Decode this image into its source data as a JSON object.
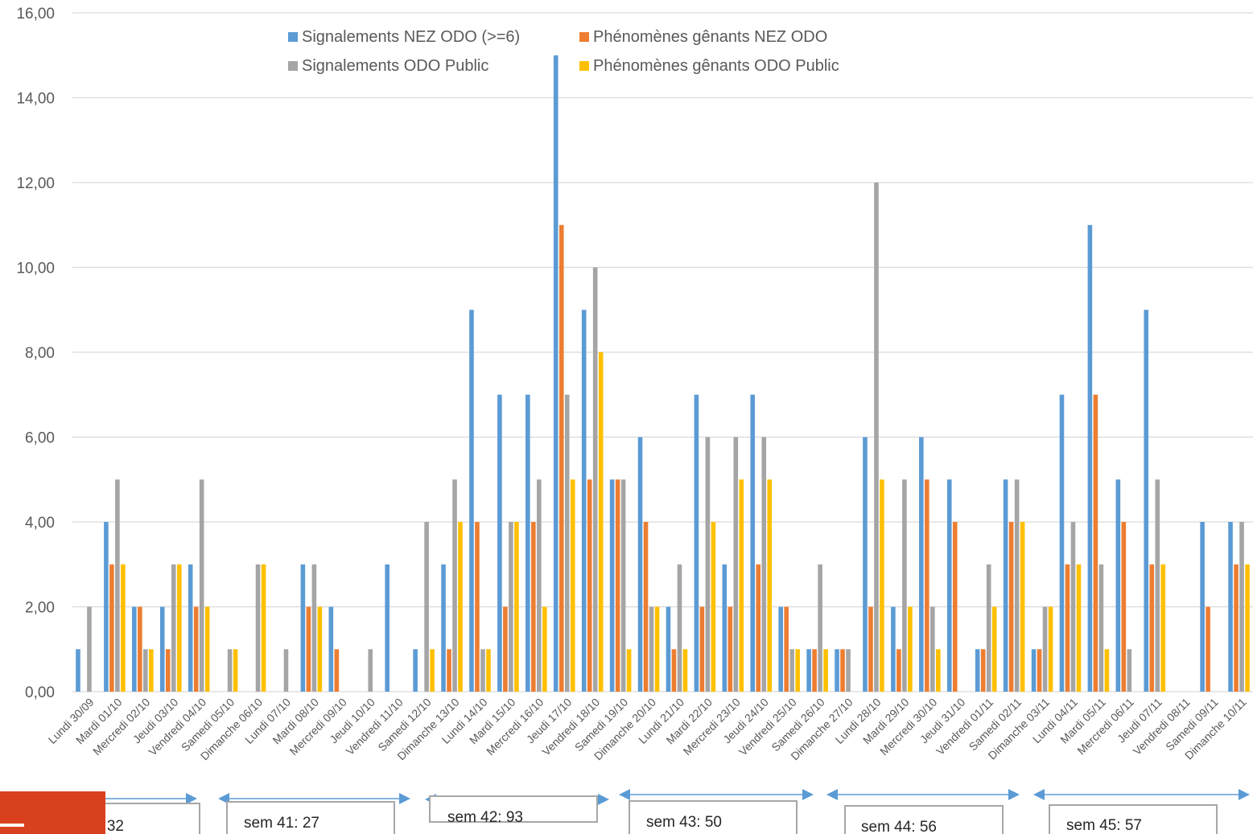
{
  "chart_data": {
    "type": "bar",
    "ylim": [
      0,
      16
    ],
    "yticks": [
      "0,00",
      "2,00",
      "4,00",
      "6,00",
      "8,00",
      "10,00",
      "12,00",
      "14,00",
      "16,00"
    ],
    "grid": true,
    "legend_position": "top-center",
    "categories": [
      "Lundi 30/09",
      "Mardi 01/10",
      "Mercredi 02/10",
      "Jeudi 03/10",
      "Vendredi 04/10",
      "Samedi 05/10",
      "Dimanche 06/10",
      "Lundi 07/10",
      "Mardi 08/10",
      "Mercredi 09/10",
      "Jeudi 10/10",
      "Vendredi 11/10",
      "Samedi 12/10",
      "Dimanche 13/10",
      "Lundi 14/10",
      "Mardi 15/10",
      "Mercredi 16/10",
      "Jeudi 17/10",
      "Vendredi 18/10",
      "Samedi 19/10",
      "Dimanche 20/10",
      "Lundi 21/10",
      "Mardi 22/10",
      "Mercredi 23/10",
      "Jeudi 24/10",
      "Vendredi 25/10",
      "Samedi 26/10",
      "Dimanche 27/10",
      "Lundi 28/10",
      "Mardi 29/10",
      "Mercredi 30/10",
      "Jeudi 31/10",
      "Vendredi 01/11",
      "Samedi 02/11",
      "Dimanche 03/11",
      "Lundi 04/11",
      "Mardi 05/11",
      "Mercredi 06/11",
      "Jeudi 07/11",
      "Vendredi 08/11",
      "Samedi 09/11",
      "Dimanche 10/11"
    ],
    "series": [
      {
        "name": "Signalements NEZ ODO (>=6)",
        "color": "#5B9BD5",
        "values": [
          1,
          4,
          2,
          2,
          3,
          0,
          0,
          0,
          3,
          2,
          0,
          3,
          1,
          3,
          9,
          7,
          7,
          15,
          9,
          5,
          6,
          2,
          7,
          3,
          7,
          2,
          1,
          1,
          6,
          2,
          6,
          5,
          1,
          5,
          1,
          7,
          11,
          5,
          9,
          0,
          4,
          4
        ]
      },
      {
        "name": "Phénomènes gênants NEZ ODO",
        "color": "#ED7D31",
        "values": [
          0,
          3,
          2,
          1,
          2,
          0,
          0,
          0,
          2,
          1,
          0,
          0,
          0,
          1,
          4,
          2,
          4,
          11,
          5,
          5,
          4,
          1,
          2,
          2,
          3,
          2,
          1,
          1,
          2,
          1,
          5,
          4,
          1,
          4,
          1,
          3,
          7,
          4,
          3,
          0,
          2,
          3
        ]
      },
      {
        "name": "Signalements ODO Public",
        "color": "#A5A5A5",
        "values": [
          2,
          5,
          1,
          3,
          5,
          1,
          3,
          1,
          3,
          0,
          1,
          0,
          4,
          5,
          1,
          4,
          5,
          7,
          10,
          5,
          2,
          3,
          6,
          6,
          6,
          1,
          3,
          1,
          12,
          5,
          2,
          0,
          3,
          5,
          2,
          4,
          3,
          1,
          5,
          0,
          0,
          4
        ]
      },
      {
        "name": "Phénomènes gênants ODO Public",
        "color": "#FFC000",
        "values": [
          0,
          3,
          1,
          3,
          2,
          1,
          3,
          0,
          2,
          0,
          0,
          0,
          1,
          4,
          1,
          4,
          2,
          5,
          8,
          1,
          2,
          1,
          4,
          5,
          5,
          1,
          1,
          0,
          5,
          2,
          1,
          0,
          2,
          4,
          2,
          3,
          1,
          0,
          3,
          0,
          0,
          3
        ]
      }
    ],
    "annotations": [
      {
        "label": "sem 40: 32"
      },
      {
        "label": "sem 41: 27"
      },
      {
        "label": "sem 42: 93"
      },
      {
        "label": "sem 43: 50"
      },
      {
        "label": "sem 44: 56"
      },
      {
        "label": "sem 45: 57"
      }
    ]
  }
}
